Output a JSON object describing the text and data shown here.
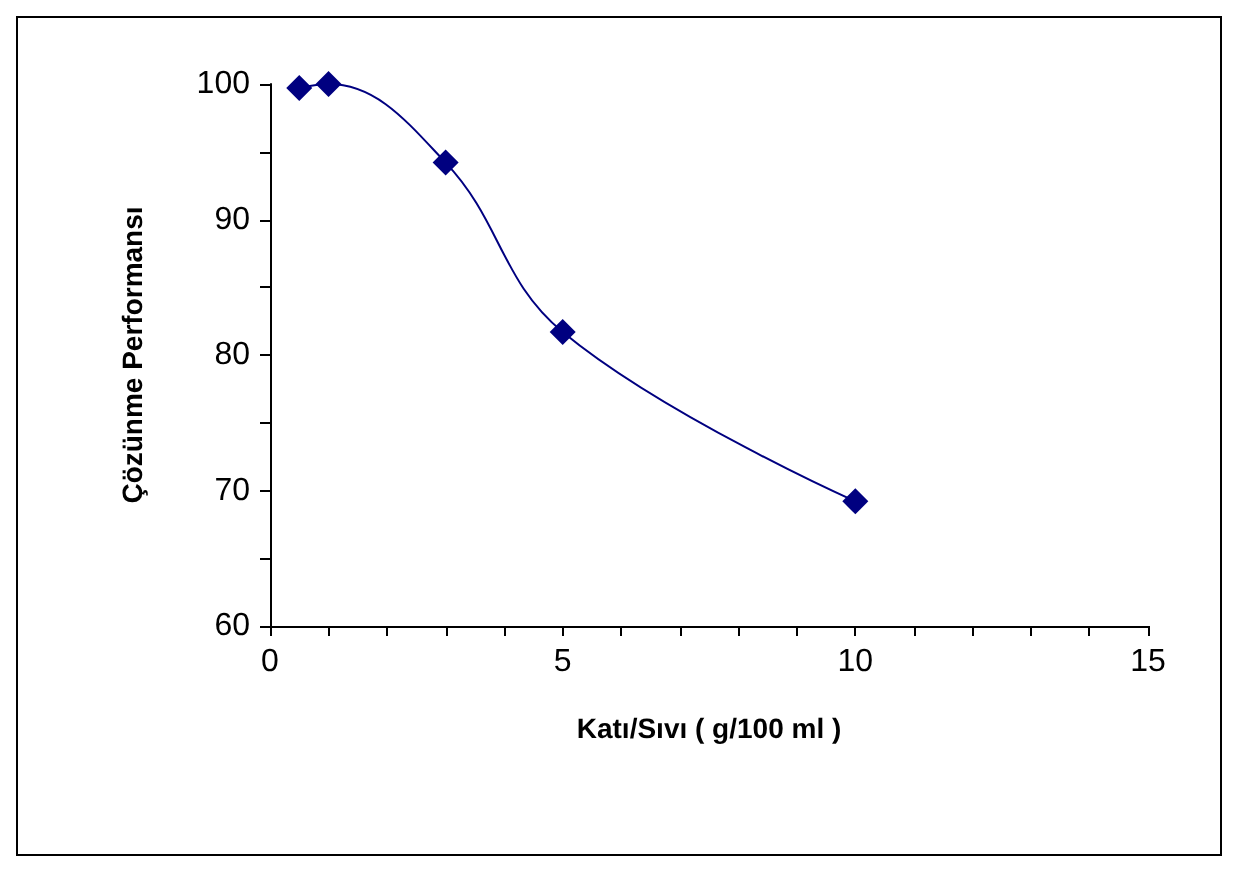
{
  "chart_data": {
    "type": "line",
    "xlabel": "Katı/Sıvı ( g/100 ml )",
    "ylabel": "Çözünme Performansı",
    "x": [
      0.5,
      1,
      3,
      5,
      10
    ],
    "series": [
      {
        "color": "#000080",
        "values": [
          99.7,
          100,
          94.2,
          81.7,
          69.2
        ]
      }
    ],
    "xlim": [
      0,
      15
    ],
    "xticks": [
      0,
      {
        "value": 1,
        "label": null
      },
      {
        "value": 2,
        "label": null
      },
      {
        "value": 3,
        "label": null
      },
      {
        "value": 4,
        "label": null
      },
      5,
      {
        "value": 6,
        "label": null
      },
      {
        "value": 7,
        "label": null
      },
      {
        "value": 8,
        "label": null
      },
      {
        "value": 9,
        "label": null
      },
      10,
      {
        "value": 11,
        "label": null
      },
      {
        "value": 12,
        "label": null
      },
      {
        "value": 13,
        "label": null
      },
      {
        "value": 14,
        "label": null
      },
      15
    ],
    "ylim": [
      60,
      100
    ],
    "yticks": [
      60,
      {
        "value": 65,
        "label": null
      },
      70,
      {
        "value": 75,
        "label": null
      },
      80,
      {
        "value": 85,
        "label": null
      },
      90,
      {
        "value": 95,
        "label": null
      },
      100
    ],
    "marker": "diamond"
  }
}
